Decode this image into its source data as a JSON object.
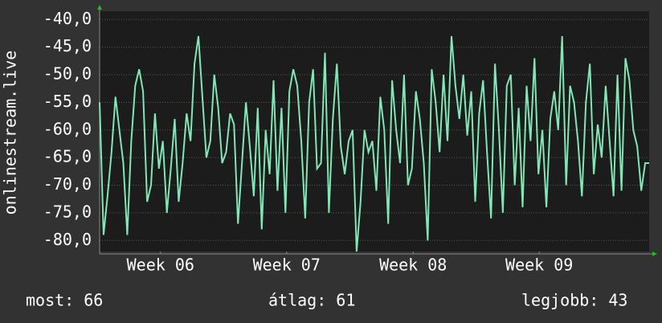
{
  "chart_data": {
    "type": "line",
    "ylabel": "onlinestream.live",
    "values": [
      -55,
      -79,
      -72,
      -64,
      -54,
      -60,
      -66,
      -79,
      -62,
      -52,
      -49,
      -53,
      -73,
      -70,
      -57,
      -67,
      -62,
      -75,
      -67,
      -58,
      -73,
      -66,
      -57,
      -62,
      -48,
      -43,
      -54,
      -65,
      -62,
      -50,
      -56,
      -66,
      -64,
      -57,
      -59,
      -77,
      -66,
      -55,
      -63,
      -72,
      -56,
      -78,
      -60,
      -68,
      -51,
      -71,
      -56,
      -75,
      -53,
      -49,
      -52,
      -62,
      -76,
      -55,
      -49,
      -67,
      -66,
      -46,
      -75,
      -58,
      -48,
      -63,
      -68,
      -62,
      -60,
      -82,
      -73,
      -60,
      -64,
      -62,
      -71,
      -54,
      -60,
      -77,
      -51,
      -60,
      -66,
      -50,
      -70,
      -67,
      -53,
      -58,
      -66,
      -80,
      -49,
      -55,
      -64,
      -50,
      -62,
      -43,
      -52,
      -58,
      -50,
      -61,
      -53,
      -73,
      -57,
      -51,
      -64,
      -76,
      -48,
      -60,
      -75,
      -52,
      -50,
      -70,
      -56,
      -74,
      -52,
      -62,
      -47,
      -68,
      -60,
      -74,
      -58,
      -53,
      -60,
      -43,
      -70,
      -52,
      -55,
      -62,
      -72,
      -55,
      -48,
      -68,
      -59,
      -65,
      -52,
      -62,
      -72,
      -50,
      -71,
      -47,
      -51,
      -60,
      -63,
      -71,
      -66,
      -66
    ],
    "color": "#7fe8b4",
    "xlim": [
      0,
      139
    ],
    "xticks": [
      {
        "value": 15.4,
        "label": "Week 06"
      },
      {
        "value": 47.3,
        "label": "Week 07"
      },
      {
        "value": 79.3,
        "label": "Week 08"
      },
      {
        "value": 111.2,
        "label": "Week 09"
      }
    ],
    "ylim": [
      -82,
      -38.5
    ],
    "yticks": [
      {
        "value": -40,
        "label": "-40,0"
      },
      {
        "value": -45,
        "label": "-45,0"
      },
      {
        "value": -50,
        "label": "-50,0"
      },
      {
        "value": -55,
        "label": "-55,0"
      },
      {
        "value": -60,
        "label": "-60,0"
      },
      {
        "value": -65,
        "label": "-65,0"
      },
      {
        "value": -70,
        "label": "-70,0"
      },
      {
        "value": -75,
        "label": "-75,0"
      },
      {
        "value": -80,
        "label": "-80,0"
      }
    ],
    "grid": true,
    "stats": [
      "most: 66",
      "átlag: 61",
      "legjobb: 43"
    ]
  }
}
